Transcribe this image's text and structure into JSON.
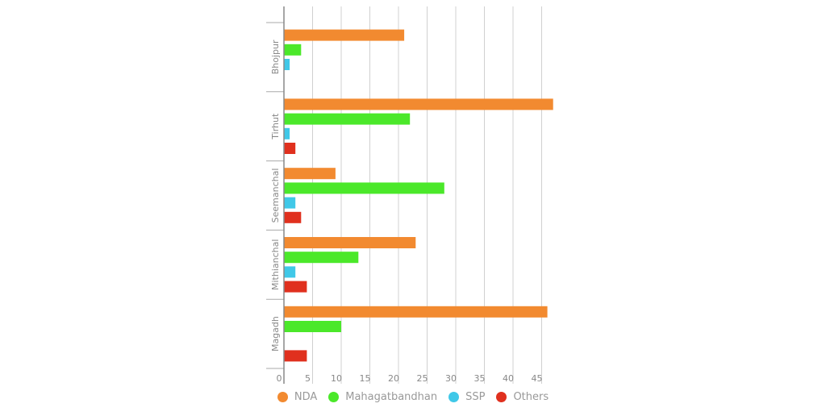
{
  "chart_data": {
    "type": "bar",
    "orientation": "horizontal",
    "title": "",
    "xlabel": "",
    "ylabel": "",
    "categories": [
      "Bhojpur",
      "Tirhut",
      "Seemanchal",
      "Mithianchal",
      "Magadh"
    ],
    "series": [
      {
        "name": "NDA",
        "color": "#f28a30",
        "values": [
          21,
          47,
          9,
          23,
          46
        ]
      },
      {
        "name": "Mahagatbandhan",
        "color": "#4be82a",
        "values": [
          3,
          22,
          28,
          13,
          10
        ]
      },
      {
        "name": "SSP",
        "color": "#40c8e8",
        "values": [
          1,
          1,
          2,
          2,
          0
        ]
      },
      {
        "name": "Others",
        "color": "#e0301e",
        "values": [
          0,
          2,
          3,
          4,
          4
        ]
      }
    ],
    "xticks": [
      0,
      5,
      10,
      15,
      20,
      25,
      30,
      35,
      40,
      45
    ],
    "xlim": [
      0,
      47
    ],
    "grid": true,
    "legend_position": "bottom"
  },
  "legend": [
    {
      "label": "NDA",
      "color": "#f28a30"
    },
    {
      "label": "Mahagatbandhan",
      "color": "#4be82a"
    },
    {
      "label": "SSP",
      "color": "#40c8e8"
    },
    {
      "label": "Others",
      "color": "#e0301e"
    }
  ]
}
